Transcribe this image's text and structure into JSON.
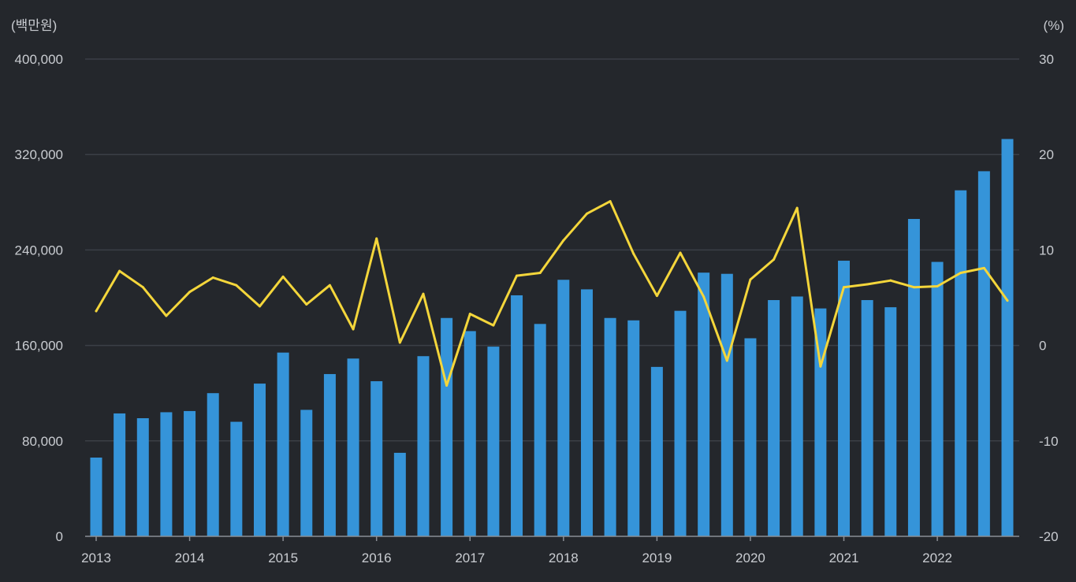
{
  "chart_data": {
    "type": "bar+line",
    "title": "",
    "y_left_unit": "(백만원)",
    "y_right_unit": "(%)",
    "y_left_lim": [
      0,
      400000
    ],
    "y_right_lim": [
      -20,
      30
    ],
    "y_left_ticks": [
      "0",
      "80,000",
      "160,000",
      "240,000",
      "320,000",
      "400,000"
    ],
    "y_left_tick_values": [
      0,
      80000,
      160000,
      240000,
      320000,
      400000
    ],
    "y_right_ticks": [
      "-20",
      "-10",
      "0",
      "10",
      "20",
      "30"
    ],
    "y_right_tick_values": [
      -20,
      -10,
      0,
      10,
      20,
      30
    ],
    "x_tick_labels": [
      "2013",
      "2014",
      "2015",
      "2016",
      "2017",
      "2018",
      "2019",
      "2020",
      "2021",
      "2022"
    ],
    "quarters_per_year": 4,
    "grid": true,
    "series": [
      {
        "name": "bar",
        "type": "bar",
        "axis": "left",
        "color": "#3594d9",
        "values": [
          66000,
          103000,
          99000,
          104000,
          105000,
          120000,
          96000,
          128000,
          154000,
          106000,
          136000,
          149000,
          130000,
          70000,
          151000,
          183000,
          172000,
          159000,
          202000,
          178000,
          215000,
          207000,
          183000,
          181000,
          142000,
          189000,
          221000,
          220000,
          166000,
          198000,
          201000,
          191000,
          231000,
          198000,
          192000,
          266000,
          230000,
          290000,
          306000,
          333000
        ]
      },
      {
        "name": "line",
        "type": "line",
        "axis": "right",
        "color": "#f4d63b",
        "values": [
          3.6,
          7.8,
          6.1,
          3.1,
          5.6,
          7.1,
          6.3,
          4.1,
          7.2,
          4.3,
          6.3,
          1.7,
          11.2,
          0.3,
          5.4,
          -4.2,
          3.3,
          2.1,
          7.3,
          7.6,
          11.0,
          13.8,
          15.1,
          9.6,
          5.2,
          9.7,
          5.1,
          -1.6,
          6.9,
          9.0,
          14.4,
          -2.2,
          6.1,
          6.4,
          6.8,
          6.1,
          6.2,
          7.6,
          8.1,
          4.7
        ]
      }
    ]
  }
}
